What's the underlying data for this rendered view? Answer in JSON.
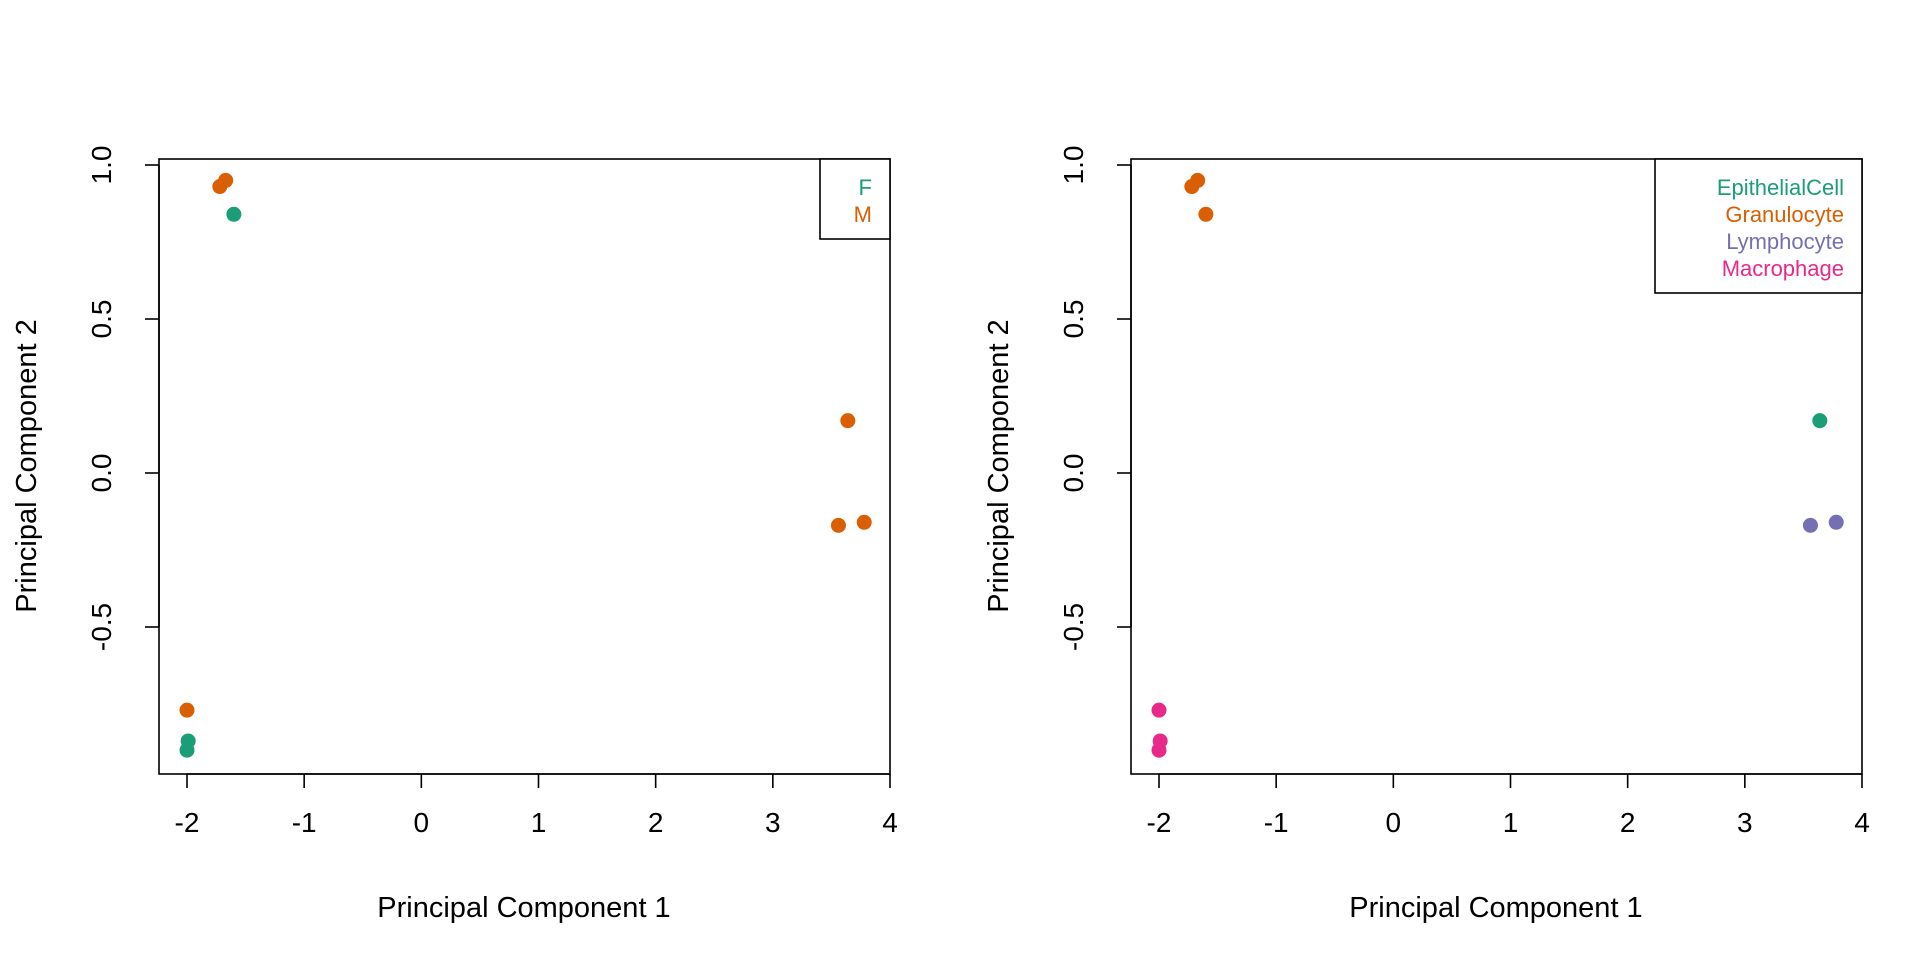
{
  "chart_data": [
    {
      "type": "scatter",
      "title": "",
      "xlabel": "Principal Component 1",
      "ylabel": "Principal Component 2",
      "xlim": [
        -2.25,
        4.0
      ],
      "ylim": [
        -0.98,
        1.02
      ],
      "xticks": [
        "-2",
        "-1",
        "0",
        "1",
        "2",
        "3",
        "4"
      ],
      "yticks": [
        "-0.5",
        "0.0",
        "0.5",
        "1.0"
      ],
      "grid": false,
      "legend_position": "top-right",
      "series": [
        {
          "name": "F",
          "color": "#1b9e77",
          "x": [
            -1.6,
            -1.99,
            -2.0
          ],
          "y": [
            0.84,
            -0.87,
            -0.9
          ]
        },
        {
          "name": "M",
          "color": "#d95f02",
          "x": [
            -1.72,
            -1.67,
            3.64,
            3.56,
            3.78,
            -2.0
          ],
          "y": [
            0.93,
            0.95,
            0.17,
            -0.17,
            -0.16,
            -0.77
          ]
        }
      ]
    },
    {
      "type": "scatter",
      "title": "",
      "xlabel": "Principal Component 1",
      "ylabel": "Principal Component 2",
      "xlim": [
        -2.25,
        4.0
      ],
      "ylim": [
        -0.98,
        1.02
      ],
      "xticks": [
        "-2",
        "-1",
        "0",
        "1",
        "2",
        "3",
        "4"
      ],
      "yticks": [
        "-0.5",
        "0.0",
        "0.5",
        "1.0"
      ],
      "grid": false,
      "legend_position": "top-right",
      "series": [
        {
          "name": "EpithelialCell",
          "color": "#1b9e77",
          "x": [
            3.64
          ],
          "y": [
            0.17
          ]
        },
        {
          "name": "Granulocyte",
          "color": "#d95f02",
          "x": [
            -1.72,
            -1.67,
            -1.6
          ],
          "y": [
            0.93,
            0.95,
            0.84
          ]
        },
        {
          "name": "Lymphocyte",
          "color": "#7570b3",
          "x": [
            3.56,
            3.78
          ],
          "y": [
            -0.17,
            -0.16
          ]
        },
        {
          "name": "Macrophage",
          "color": "#e7298a",
          "x": [
            -2.0,
            -1.99,
            -2.0
          ],
          "y": [
            -0.77,
            -0.87,
            -0.9
          ]
        }
      ]
    }
  ]
}
